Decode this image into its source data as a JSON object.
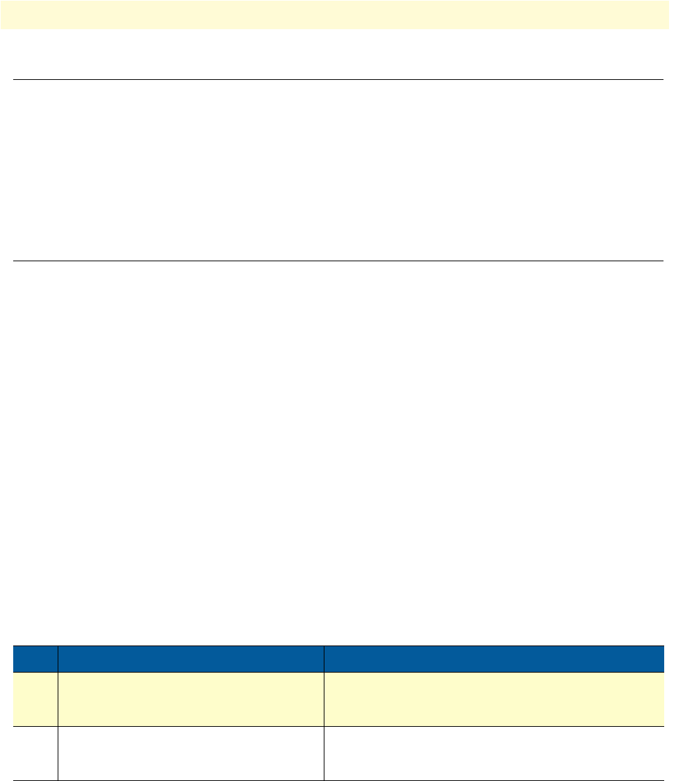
{
  "colors": {
    "header_band": "#fffbd6",
    "table_header": "#035a9b",
    "row_highlight": "#fefdcb"
  },
  "table": {
    "headers": [
      "",
      "",
      ""
    ],
    "rows": [
      [
        "",
        "",
        ""
      ],
      [
        "",
        "",
        ""
      ]
    ]
  }
}
